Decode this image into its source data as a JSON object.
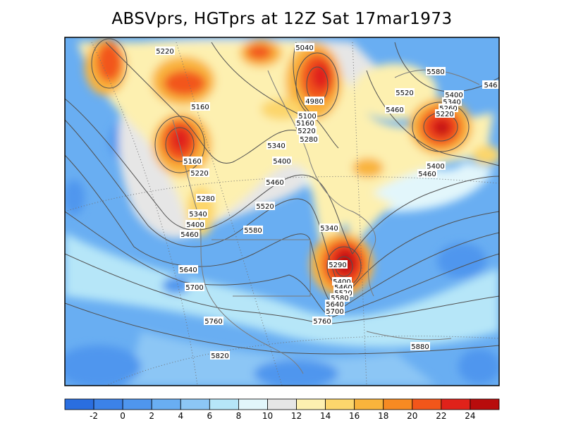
{
  "title": "ABSVprs, HGTprs at 12Z Sat 17mar1973",
  "colorbar": {
    "colors": [
      "#2a6ee0",
      "#3c82e8",
      "#4f96ee",
      "#69aef2",
      "#8cc6f5",
      "#b6e6f8",
      "#e2f6fb",
      "#e6e6e6",
      "#fdf0b0",
      "#fcd66c",
      "#f9b43c",
      "#f78a22",
      "#f2561a",
      "#e0221a",
      "#b80c0c"
    ],
    "tick_labels": [
      "-2",
      "0",
      "2",
      "4",
      "6",
      "8",
      "10",
      "12",
      "14",
      "16",
      "18",
      "20",
      "22",
      "24"
    ]
  },
  "contour_labels": [
    "5220",
    "5040",
    "5580",
    "5520",
    "5400",
    "5340",
    "5260",
    "5220",
    "5460",
    "5400",
    "5460",
    "4980",
    "5100",
    "5160",
    "5220",
    "5280",
    "5160",
    "5340",
    "5400",
    "5160",
    "5220",
    "5460",
    "5280",
    "5520",
    "5340",
    "5400",
    "5460",
    "5580",
    "5340",
    "5640",
    "5700",
    "5290",
    "5400",
    "5460",
    "5520",
    "5580",
    "5640",
    "5700",
    "5760",
    "5760",
    "5880",
    "5820",
    "546"
  ]
}
